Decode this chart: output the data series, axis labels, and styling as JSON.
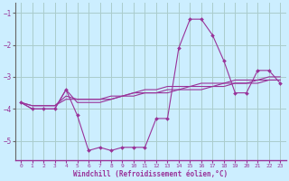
{
  "title": "",
  "xlabel": "Windchill (Refroidissement éolien,°C)",
  "background_color": "#cceeff",
  "grid_color": "#aacccc",
  "line_color": "#993399",
  "x_values": [
    0,
    1,
    2,
    3,
    4,
    5,
    6,
    7,
    8,
    9,
    10,
    11,
    12,
    13,
    14,
    15,
    16,
    17,
    18,
    19,
    20,
    21,
    22,
    23
  ],
  "series_main": [
    -3.8,
    -4.0,
    -4.0,
    -4.0,
    -3.4,
    -4.2,
    -5.3,
    -5.2,
    -5.3,
    -5.2,
    -5.2,
    -5.2,
    -4.3,
    -4.3,
    -2.1,
    -1.2,
    -1.2,
    -1.7,
    -2.5,
    -3.5,
    -3.5,
    -2.8,
    -2.8,
    -3.2
  ],
  "series_line2": [
    -3.8,
    -4.0,
    -4.0,
    -4.0,
    -3.4,
    -3.8,
    -3.8,
    -3.8,
    -3.7,
    -3.6,
    -3.5,
    -3.4,
    -3.4,
    -3.3,
    -3.3,
    -3.3,
    -3.2,
    -3.2,
    -3.2,
    -3.1,
    -3.1,
    -3.1,
    -3.0,
    -3.0
  ],
  "series_line3": [
    -3.8,
    -3.9,
    -3.9,
    -3.9,
    -3.6,
    -3.7,
    -3.7,
    -3.7,
    -3.6,
    -3.6,
    -3.5,
    -3.5,
    -3.5,
    -3.4,
    -3.4,
    -3.3,
    -3.3,
    -3.3,
    -3.2,
    -3.2,
    -3.2,
    -3.1,
    -3.1,
    -3.1
  ],
  "series_line4": [
    -3.8,
    -3.9,
    -3.9,
    -3.9,
    -3.7,
    -3.7,
    -3.7,
    -3.7,
    -3.7,
    -3.6,
    -3.6,
    -3.5,
    -3.5,
    -3.5,
    -3.4,
    -3.4,
    -3.4,
    -3.3,
    -3.3,
    -3.2,
    -3.2,
    -3.2,
    -3.1,
    -3.1
  ],
  "ylim": [
    -5.6,
    -0.7
  ],
  "yticks": [
    -5,
    -4,
    -3,
    -2,
    -1
  ],
  "xlim": [
    -0.5,
    23.5
  ],
  "xticks": [
    0,
    1,
    2,
    3,
    4,
    5,
    6,
    7,
    8,
    9,
    10,
    11,
    12,
    13,
    14,
    15,
    16,
    17,
    18,
    19,
    20,
    21,
    22,
    23
  ],
  "xtick_labels": [
    "0",
    "1",
    "2",
    "3",
    "4",
    "5",
    "6",
    "7",
    "8",
    "9",
    "10",
    "11",
    "12",
    "13",
    "14",
    "15",
    "16",
    "17",
    "18",
    "19",
    "20",
    "21",
    "22",
    "23"
  ]
}
